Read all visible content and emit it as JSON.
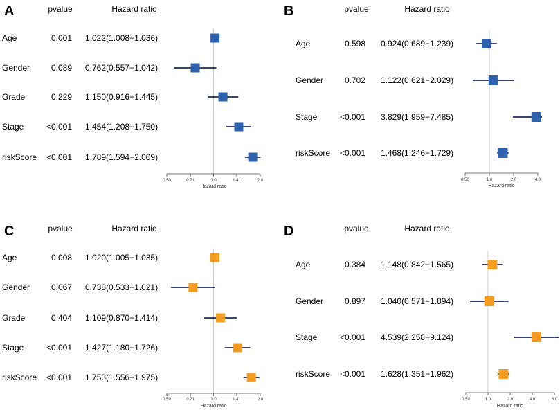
{
  "figure": {
    "colors": {
      "blue": "#2e62ad",
      "orange": "#f39c1f",
      "ci": "#1b2a63",
      "axis": "#4d4d4d",
      "ref": "#cccccc"
    }
  },
  "chart_data": [
    {
      "panel": "A",
      "type": "forest",
      "headers": {
        "pvalue": "pvalue",
        "hr": "Hazard ratio"
      },
      "xlabel": "Hazard ratio",
      "scale": "log",
      "xlim": [
        0.5,
        2.0
      ],
      "ticks": [
        0.5,
        0.71,
        1.0,
        1.41,
        2.0
      ],
      "tick_labels": [
        "0.50",
        "0.71",
        "1.0",
        "1.41",
        "2.0"
      ],
      "ref": 1.0,
      "color": "blue",
      "rows": [
        {
          "label": "Age",
          "pvalue": "0.001",
          "hr_text": "1.022(1.008−1.036)",
          "hr": 1.022,
          "low": 1.008,
          "high": 1.036
        },
        {
          "label": "Gender",
          "pvalue": "0.089",
          "hr_text": "0.762(0.557−1.042)",
          "hr": 0.762,
          "low": 0.557,
          "high": 1.042
        },
        {
          "label": "Grade",
          "pvalue": "0.229",
          "hr_text": "1.150(0.916−1.445)",
          "hr": 1.15,
          "low": 0.916,
          "high": 1.445
        },
        {
          "label": "Stage",
          "pvalue": "<0.001",
          "hr_text": "1.454(1.208−1.750)",
          "hr": 1.454,
          "low": 1.208,
          "high": 1.75
        },
        {
          "label": "riskScore",
          "pvalue": "<0.001",
          "hr_text": "1.789(1.594−2.009)",
          "hr": 1.789,
          "low": 1.594,
          "high": 2.009
        }
      ]
    },
    {
      "panel": "B",
      "type": "forest",
      "headers": {
        "pvalue": "pvalue",
        "hr": "Hazard ratio"
      },
      "xlabel": "Hazard ratio",
      "scale": "log",
      "xlim": [
        0.5,
        4.0
      ],
      "ticks": [
        0.5,
        1.0,
        2.0,
        4.0
      ],
      "tick_labels": [
        "0.50",
        "1.0",
        "2.0",
        "4.0"
      ],
      "ref": 1.0,
      "color": "blue",
      "rows": [
        {
          "label": "Age",
          "pvalue": "0.598",
          "hr_text": "0.924(0.689−1.239)",
          "hr": 0.924,
          "low": 0.689,
          "high": 1.239
        },
        {
          "label": "Gender",
          "pvalue": "0.702",
          "hr_text": "1.122(0.621−2.029)",
          "hr": 1.122,
          "low": 0.621,
          "high": 2.029
        },
        {
          "label": "Stage",
          "pvalue": "<0.001",
          "hr_text": "3.829(1.959−7.485)",
          "hr": 3.829,
          "low": 1.959,
          "high": 7.485
        },
        {
          "label": "riskScore",
          "pvalue": "<0.001",
          "hr_text": "1.468(1.246−1.729)",
          "hr": 1.468,
          "low": 1.246,
          "high": 1.729
        }
      ]
    },
    {
      "panel": "C",
      "type": "forest",
      "headers": {
        "pvalue": "pvalue",
        "hr": "Hazard ratio"
      },
      "xlabel": "Hazard ratio",
      "scale": "log",
      "xlim": [
        0.5,
        2.0
      ],
      "ticks": [
        0.5,
        0.71,
        1.0,
        1.41,
        2.0
      ],
      "tick_labels": [
        "0.50",
        "0.71",
        "1.0",
        "1.41",
        "2.0"
      ],
      "ref": 1.0,
      "color": "orange",
      "rows": [
        {
          "label": "Age",
          "pvalue": "0.008",
          "hr_text": "1.020(1.005−1.035)",
          "hr": 1.02,
          "low": 1.005,
          "high": 1.035
        },
        {
          "label": "Gender",
          "pvalue": "0.067",
          "hr_text": "0.738(0.533−1.021)",
          "hr": 0.738,
          "low": 0.533,
          "high": 1.021
        },
        {
          "label": "Grade",
          "pvalue": "0.404",
          "hr_text": "1.109(0.870−1.414)",
          "hr": 1.109,
          "low": 0.87,
          "high": 1.414
        },
        {
          "label": "Stage",
          "pvalue": "<0.001",
          "hr_text": "1.427(1.180−1.726)",
          "hr": 1.427,
          "low": 1.18,
          "high": 1.726
        },
        {
          "label": "riskScore",
          "pvalue": "<0.001",
          "hr_text": "1.753(1.556−1.975)",
          "hr": 1.753,
          "low": 1.556,
          "high": 1.975
        }
      ]
    },
    {
      "panel": "D",
      "type": "forest",
      "headers": {
        "pvalue": "pvalue",
        "hr": "Hazard ratio"
      },
      "xlabel": "Hazard ratio",
      "scale": "log",
      "xlim": [
        0.5,
        8.0
      ],
      "ticks": [
        0.5,
        1.0,
        2.0,
        4.0,
        8.0
      ],
      "tick_labels": [
        "0.50",
        "1.0",
        "2.0",
        "4.0",
        "8.0"
      ],
      "ref": 1.0,
      "color": "orange",
      "rows": [
        {
          "label": "Age",
          "pvalue": "0.384",
          "hr_text": "1.148(0.842−1.565)",
          "hr": 1.148,
          "low": 0.842,
          "high": 1.565
        },
        {
          "label": "Gender",
          "pvalue": "0.897",
          "hr_text": "1.040(0.571−1.894)",
          "hr": 1.04,
          "low": 0.571,
          "high": 1.894
        },
        {
          "label": "Stage",
          "pvalue": "<0.001",
          "hr_text": "4.539(2.258−9.124)",
          "hr": 4.539,
          "low": 2.258,
          "high": 9.124
        },
        {
          "label": "riskScore",
          "pvalue": "<0.001",
          "hr_text": "1.628(1.351−1.962)",
          "hr": 1.628,
          "low": 1.351,
          "high": 1.962
        }
      ]
    }
  ]
}
